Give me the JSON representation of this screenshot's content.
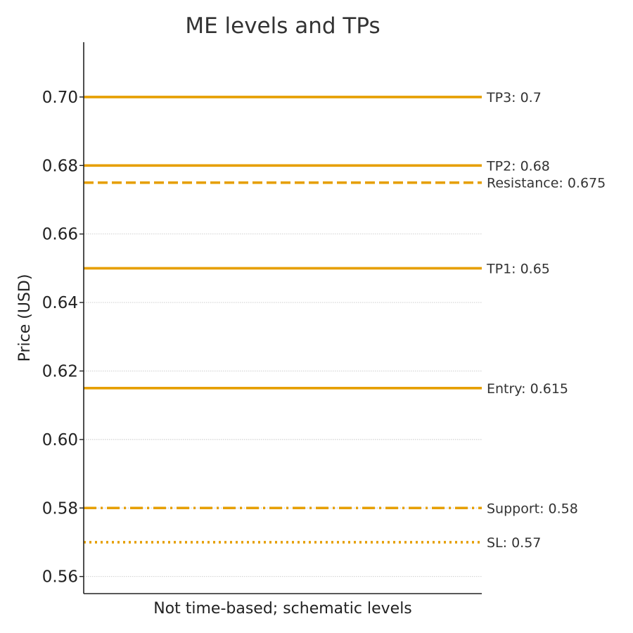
{
  "chart_data": {
    "type": "line",
    "title": "ME levels and TPs",
    "xlabel": "Not time-based; schematic levels",
    "ylabel": "Price (USD)",
    "ylim": [
      0.555,
      0.716
    ],
    "yticks": [
      0.56,
      0.58,
      0.6,
      0.62,
      0.64,
      0.66,
      0.68,
      0.7
    ],
    "ytick_labels": [
      "0.56",
      "0.58",
      "0.60",
      "0.62",
      "0.64",
      "0.66",
      "0.68",
      "0.70"
    ],
    "grid": true,
    "line_color": "#E69F00",
    "grid_color": "#c8c8c8",
    "series": [
      {
        "label": "TP3: 0.7",
        "value": 0.7,
        "style": "solid"
      },
      {
        "label": "TP2: 0.68",
        "value": 0.68,
        "style": "solid"
      },
      {
        "label": "Resistance: 0.675",
        "value": 0.675,
        "style": "dashed"
      },
      {
        "label": "TP1: 0.65",
        "value": 0.65,
        "style": "solid"
      },
      {
        "label": "Entry: 0.615",
        "value": 0.615,
        "style": "solid"
      },
      {
        "label": "Support: 0.58",
        "value": 0.58,
        "style": "dashdot"
      },
      {
        "label": "SL: 0.57",
        "value": 0.57,
        "style": "dotted"
      }
    ]
  }
}
